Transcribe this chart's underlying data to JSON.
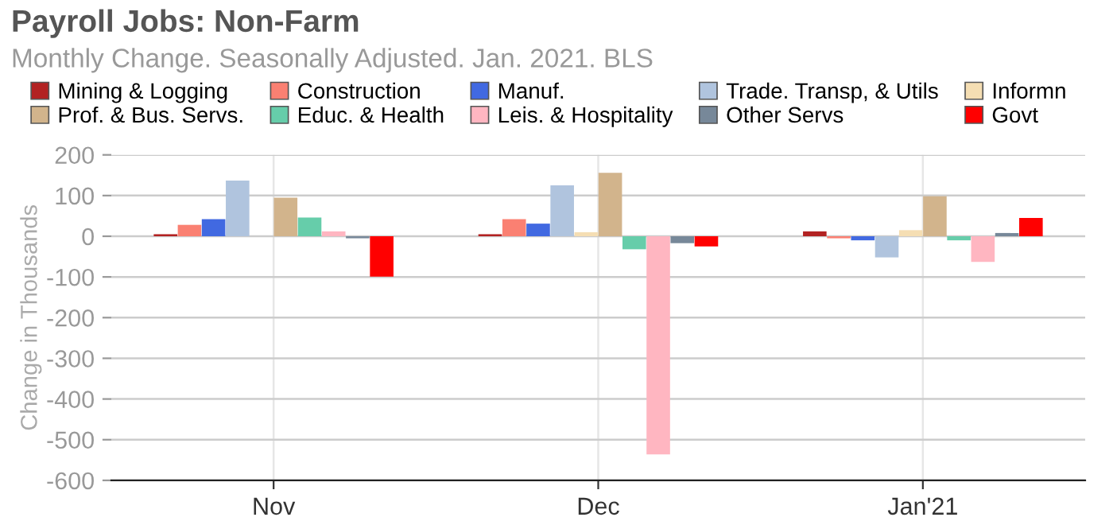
{
  "chart_data": {
    "type": "bar",
    "title": "Payroll Jobs: Non-Farm",
    "subtitle": "Monthly Change. Seasonally Adjusted. Jan. 2021. BLS",
    "ylabel": "Change in Thousands",
    "categories": [
      "Nov",
      "Dec",
      "Jan'21"
    ],
    "series": [
      {
        "name": "Mining & Logging",
        "color": "#b22222",
        "values": [
          5,
          5,
          12
        ]
      },
      {
        "name": "Construction",
        "color": "#fa8072",
        "values": [
          28,
          42,
          -5
        ]
      },
      {
        "name": "Manuf.",
        "color": "#4169e1",
        "values": [
          42,
          31,
          -10
        ]
      },
      {
        "name": "Trade. Transp, & Utils",
        "color": "#b0c4de",
        "values": [
          137,
          125,
          -52
        ]
      },
      {
        "name": "Informn",
        "color": "#f5deb3",
        "values": [
          0,
          10,
          15
        ]
      },
      {
        "name": "Prof. & Bus. Servs.",
        "color": "#d2b48c",
        "values": [
          95,
          156,
          98
        ]
      },
      {
        "name": "Educ. & Health",
        "color": "#66cdaa",
        "values": [
          46,
          -32,
          -10
        ]
      },
      {
        "name": "Leis. & Hospitality",
        "color": "#ffb6c1",
        "values": [
          12,
          -536,
          -63
        ]
      },
      {
        "name": "Other Servs",
        "color": "#778899",
        "values": [
          -5,
          -17,
          8
        ]
      },
      {
        "name": "Govt",
        "color": "#ff0000",
        "values": [
          -99,
          -25,
          45
        ]
      }
    ],
    "ylim": [
      -600,
      200
    ],
    "yticks": [
      -600,
      -500,
      -400,
      -300,
      -200,
      -100,
      0,
      100,
      200
    ],
    "grid": true,
    "legend": "top"
  }
}
